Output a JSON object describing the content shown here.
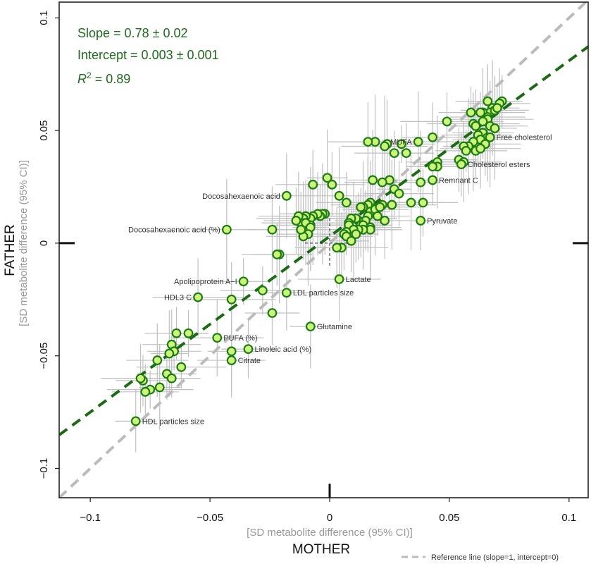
{
  "chart_data": {
    "type": "scatter",
    "xlabel": "MOTHER",
    "xsublabel": "[SD metabolite difference (95% CI)]",
    "ylabel": "FATHER",
    "ysublabel": "[SD metabolite difference (95% CI)]",
    "xlim": [
      -0.113,
      0.108
    ],
    "ylim": [
      -0.113,
      0.107
    ],
    "x_ticks": [
      -0.1,
      -0.05,
      0,
      0.05,
      0.1
    ],
    "x_tick_labels": [
      "−0.1",
      "−0.05",
      "0",
      "0.05",
      "0.1"
    ],
    "y_ticks": [
      -0.1,
      -0.05,
      0,
      0.05,
      0.1
    ],
    "y_tick_labels": [
      "−0.1",
      "−0.05",
      "0",
      "0.05",
      "0.1"
    ],
    "stats": {
      "slope": "Slope = 0.78 ± 0.02",
      "intercept": "Intercept = 0.003 ± 0.001",
      "r2_symbol": "R",
      "r2_exp": "2",
      "r2_value": " = 0.89"
    },
    "fit_line": {
      "slope": 0.78,
      "intercept": 0.003,
      "color": "#1a6b12"
    },
    "reference_line": {
      "slope": 1,
      "intercept": 0,
      "color": "#bbbbbb"
    },
    "legend": {
      "text": "Reference line (slope=1, intercept=0)",
      "position": "bottom-right"
    },
    "point_fill": "#ccf57a",
    "point_stroke": "#1c7c14",
    "errorbar_color": "#c0c0c0",
    "labeled_points": [
      {
        "x": 0.037,
        "y": 0.045,
        "label": "MUFA"
      },
      {
        "x": 0.067,
        "y": 0.047,
        "label": "Free cholesterol"
      },
      {
        "x": 0.055,
        "y": 0.035,
        "label": "Cholesterol esters"
      },
      {
        "x": 0.043,
        "y": 0.028,
        "label": "Remnant C"
      },
      {
        "x": -0.018,
        "y": 0.021,
        "label": "Docosahexaenoic acid"
      },
      {
        "x": -0.043,
        "y": 0.006,
        "label": "Docosahexaenoic acid (%)"
      },
      {
        "x": 0.038,
        "y": 0.01,
        "label": "Pyruvate"
      },
      {
        "x": -0.036,
        "y": -0.017,
        "label": "Apolipoprotein A−I"
      },
      {
        "x": -0.055,
        "y": -0.024,
        "label": "HDL3 C"
      },
      {
        "x": 0.004,
        "y": -0.016,
        "label": "Lactate"
      },
      {
        "x": -0.018,
        "y": -0.022,
        "label": "LDL particles size"
      },
      {
        "x": -0.008,
        "y": -0.037,
        "label": "Glutamine"
      },
      {
        "x": -0.047,
        "y": -0.042,
        "label": "PUFA (%)"
      },
      {
        "x": -0.034,
        "y": -0.047,
        "label": "Linoleic acid (%)"
      },
      {
        "x": -0.041,
        "y": -0.052,
        "label": "Citrate"
      },
      {
        "x": -0.081,
        "y": -0.079,
        "label": "HDL particles size"
      }
    ],
    "points": [
      [
        0.066,
        0.063
      ],
      [
        0.072,
        0.063
      ],
      [
        0.071,
        0.062
      ],
      [
        0.068,
        0.06
      ],
      [
        0.067,
        0.058
      ],
      [
        0.064,
        0.058
      ],
      [
        0.063,
        0.058
      ],
      [
        0.059,
        0.058
      ],
      [
        0.066,
        0.056
      ],
      [
        0.069,
        0.059
      ],
      [
        0.07,
        0.06
      ],
      [
        0.066,
        0.055
      ],
      [
        0.064,
        0.054
      ],
      [
        0.06,
        0.053
      ],
      [
        0.061,
        0.052
      ],
      [
        0.067,
        0.052
      ],
      [
        0.069,
        0.051
      ],
      [
        0.064,
        0.049
      ],
      [
        0.062,
        0.048
      ],
      [
        0.066,
        0.047
      ],
      [
        0.063,
        0.046
      ],
      [
        0.06,
        0.045
      ],
      [
        0.058,
        0.043
      ],
      [
        0.061,
        0.041
      ],
      [
        0.065,
        0.044
      ],
      [
        0.063,
        0.042
      ],
      [
        0.056,
        0.043
      ],
      [
        0.057,
        0.041
      ],
      [
        0.054,
        0.037
      ],
      [
        0.056,
        0.036
      ],
      [
        0.049,
        0.054
      ],
      [
        0.043,
        0.047
      ],
      [
        0.045,
        0.036
      ],
      [
        0.045,
        0.034
      ],
      [
        0.043,
        0.034
      ],
      [
        0.027,
        0.04
      ],
      [
        0.024,
        0.044
      ],
      [
        0.023,
        0.043
      ],
      [
        0.019,
        0.045
      ],
      [
        0.016,
        0.045
      ],
      [
        0.03,
        0.044
      ],
      [
        0.032,
        0.04
      ],
      [
        0.025,
        0.028
      ],
      [
        0.022,
        0.027
      ],
      [
        0.018,
        0.028
      ],
      [
        0.027,
        0.024
      ],
      [
        0.029,
        0.022
      ],
      [
        0.038,
        0.027
      ],
      [
        0.034,
        0.018
      ],
      [
        0.039,
        0.018
      ],
      [
        0.026,
        0.017
      ],
      [
        0.026,
        0.017
      ],
      [
        0.022,
        0.017
      ],
      [
        0.017,
        0.018
      ],
      [
        0.016,
        0.017
      ],
      [
        0.014,
        0.016
      ],
      [
        0.013,
        0.016
      ],
      [
        0.017,
        0.014
      ],
      [
        0.019,
        0.015
      ],
      [
        0.021,
        0.016
      ],
      [
        0.02,
        0.012
      ],
      [
        0.016,
        0.012
      ],
      [
        0.015,
        0.01
      ],
      [
        0.012,
        0.01
      ],
      [
        0.011,
        0.011
      ],
      [
        0.009,
        0.011
      ],
      [
        0.008,
        0.009
      ],
      [
        0.008,
        0.008
      ],
      [
        0.013,
        0.008
      ],
      [
        0.014,
        0.008
      ],
      [
        0.017,
        0.007
      ],
      [
        0.017,
        0.006
      ],
      [
        0.014,
        0.006
      ],
      [
        0.012,
        0.006
      ],
      [
        0.01,
        0.006
      ],
      [
        0.007,
        0.005
      ],
      [
        0.011,
        0.004
      ],
      [
        0.023,
        0.01
      ],
      [
        0.007,
        0.018
      ],
      [
        0.004,
        0.021
      ],
      [
        0.001,
        0.026
      ],
      [
        -0.001,
        0.029
      ],
      [
        -0.007,
        0.026
      ],
      [
        -0.002,
        0.013
      ],
      [
        -0.003,
        0.013
      ],
      [
        -0.004,
        0.012
      ],
      [
        -0.005,
        0.013
      ],
      [
        -0.007,
        0.012
      ],
      [
        -0.008,
        0.011
      ],
      [
        -0.008,
        0.008
      ],
      [
        -0.01,
        0.012
      ],
      [
        -0.011,
        0.011
      ],
      [
        -0.012,
        0.009
      ],
      [
        -0.013,
        0.012
      ],
      [
        -0.014,
        0.01
      ],
      [
        -0.01,
        0.009
      ],
      [
        -0.008,
        0.007
      ],
      [
        -0.009,
        0.004
      ],
      [
        -0.011,
        0.003
      ],
      [
        -0.012,
        0.006
      ],
      [
        0.006,
        0.004
      ],
      [
        0.007,
        0.003
      ],
      [
        0.005,
        -0.002
      ],
      [
        0.009,
        0.001
      ],
      [
        0.003,
        -0.002
      ],
      [
        -0.024,
        0.006
      ],
      [
        -0.021,
        -0.005
      ],
      [
        -0.022,
        -0.005
      ],
      [
        -0.028,
        -0.021
      ],
      [
        -0.024,
        -0.031
      ],
      [
        -0.041,
        -0.025
      ],
      [
        -0.059,
        -0.04
      ],
      [
        -0.064,
        -0.04
      ],
      [
        -0.066,
        -0.045
      ],
      [
        -0.065,
        -0.048
      ],
      [
        -0.067,
        -0.049
      ],
      [
        -0.072,
        -0.052
      ],
      [
        -0.062,
        -0.055
      ],
      [
        -0.068,
        -0.058
      ],
      [
        -0.066,
        -0.06
      ],
      [
        -0.071,
        -0.064
      ],
      [
        -0.075,
        -0.065
      ],
      [
        -0.077,
        -0.066
      ],
      [
        -0.078,
        -0.061
      ],
      [
        -0.079,
        -0.06
      ],
      [
        -0.041,
        -0.048
      ]
    ]
  }
}
